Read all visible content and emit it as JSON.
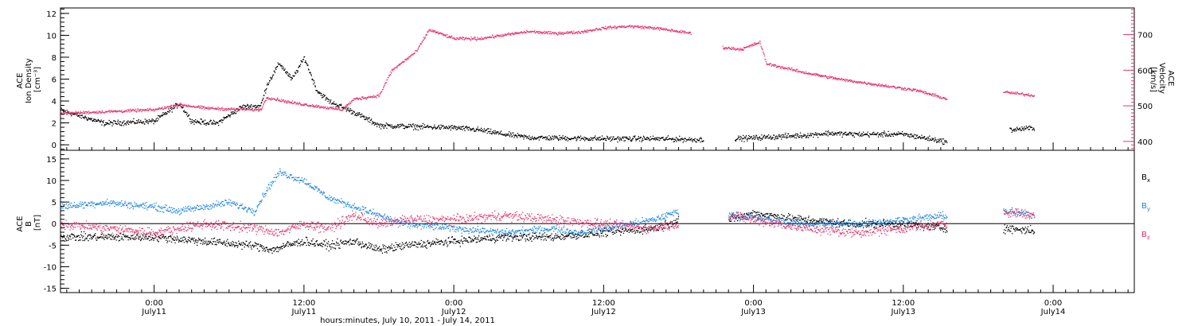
{
  "colors": {
    "black": "#000000",
    "pink": "#e8336b",
    "blue": "#1f87e0"
  },
  "chart_data": [
    {
      "type": "scatter",
      "panel": "top",
      "title": "",
      "x_range": [
        "2011-07-10 16:30",
        "2011-07-14 06:30"
      ],
      "left_axis": {
        "label_lines": [
          "ACE",
          "Ion Density",
          "[cm⁻³]"
        ],
        "ylim": [
          -0.5,
          12.5
        ],
        "ticks": [
          0,
          2,
          4,
          6,
          8,
          10,
          12
        ],
        "tick_labels": [
          "0",
          "2",
          "4",
          "6",
          "8",
          "10",
          "12"
        ]
      },
      "right_axis": {
        "label_lines": [
          "ACE",
          "Velocity",
          "[km/s]"
        ],
        "ylim": [
          375,
          775
        ],
        "ticks": [
          400,
          500,
          600,
          700
        ],
        "tick_labels": [
          "400",
          "500",
          "600",
          "700"
        ],
        "color": "#e8336b"
      },
      "series": [
        {
          "axis": "left",
          "color": "#000000",
          "scatter": 0.35,
          "points": [
            [
              "2011-07-10 16:30",
              3.2
            ],
            [
              "2011-07-10 20:00",
              2.0
            ],
            [
              "2011-07-11 00:00",
              2.2
            ],
            [
              "2011-07-11 02:00",
              3.8
            ],
            [
              "2011-07-11 03:00",
              2.2
            ],
            [
              "2011-07-11 05:00",
              2.0
            ],
            [
              "2011-07-11 07:00",
              3.5
            ],
            [
              "2011-07-11 08:30",
              3.6
            ],
            [
              "2011-07-11 09:00",
              5.5
            ],
            [
              "2011-07-11 10:00",
              7.5
            ],
            [
              "2011-07-11 11:00",
              6.0
            ],
            [
              "2011-07-11 12:00",
              8.0
            ],
            [
              "2011-07-11 13:00",
              5.0
            ],
            [
              "2011-07-11 14:00",
              4.0
            ],
            [
              "2011-07-11 16:00",
              3.0
            ],
            [
              "2011-07-11 18:00",
              1.8
            ],
            [
              "2011-07-12 00:00",
              1.6
            ],
            [
              "2011-07-12 02:00",
              1.4
            ],
            [
              "2011-07-12 04:00",
              1.0
            ],
            [
              "2011-07-12 06:00",
              0.7
            ],
            [
              "2011-07-12 12:00",
              0.6
            ],
            [
              "2011-07-12 16:00",
              0.6
            ],
            [
              "2011-07-12 20:00",
              0.5
            ]
          ]
        },
        {
          "axis": "left",
          "color": "#000000",
          "scatter": 0.35,
          "points": [
            [
              "2011-07-12 22:30",
              0.6
            ],
            [
              "2011-07-13 04:00",
              0.9
            ],
            [
              "2011-07-13 06:00",
              1.1
            ],
            [
              "2011-07-13 08:00",
              1.0
            ],
            [
              "2011-07-13 12:00",
              1.0
            ],
            [
              "2011-07-13 15:30",
              0.3
            ]
          ]
        },
        {
          "axis": "left",
          "color": "#000000",
          "scatter": 0.35,
          "points": [
            [
              "2011-07-13 20:30",
              1.4
            ],
            [
              "2011-07-13 22:30",
              1.6
            ]
          ]
        },
        {
          "axis": "right",
          "color": "#e8336b",
          "scatter": 6,
          "points": [
            [
              "2011-07-10 16:30",
              480
            ],
            [
              "2011-07-11 00:00",
              490
            ],
            [
              "2011-07-11 02:00",
              505
            ],
            [
              "2011-07-11 04:00",
              495
            ],
            [
              "2011-07-11 06:00",
              492
            ],
            [
              "2011-07-11 08:30",
              490
            ],
            [
              "2011-07-11 09:00",
              525
            ],
            [
              "2011-07-11 11:00",
              510
            ],
            [
              "2011-07-11 13:00",
              500
            ],
            [
              "2011-07-11 15:00",
              490
            ],
            [
              "2011-07-11 16:00",
              520
            ],
            [
              "2011-07-11 18:00",
              530
            ],
            [
              "2011-07-11 19:00",
              600
            ],
            [
              "2011-07-11 21:00",
              655
            ],
            [
              "2011-07-11 22:00",
              715
            ],
            [
              "2011-07-12 00:00",
              690
            ],
            [
              "2011-07-12 02:00",
              690
            ],
            [
              "2011-07-12 04:00",
              700
            ],
            [
              "2011-07-12 06:00",
              710
            ],
            [
              "2011-07-12 08:00",
              705
            ],
            [
              "2011-07-12 10:00",
              708
            ],
            [
              "2011-07-12 12:00",
              720
            ],
            [
              "2011-07-12 14:00",
              725
            ],
            [
              "2011-07-12 16:00",
              720
            ],
            [
              "2011-07-12 19:00",
              705
            ]
          ]
        },
        {
          "axis": "right",
          "color": "#e8336b",
          "scatter": 6,
          "points": [
            [
              "2011-07-12 21:30",
              665
            ],
            [
              "2011-07-12 23:00",
              660
            ],
            [
              "2011-07-13 00:30",
              680
            ],
            [
              "2011-07-13 01:00",
              620
            ],
            [
              "2011-07-13 04:00",
              595
            ],
            [
              "2011-07-13 07:00",
              575
            ],
            [
              "2011-07-13 10:00",
              560
            ],
            [
              "2011-07-13 13:00",
              545
            ],
            [
              "2011-07-13 15:30",
              520
            ]
          ]
        },
        {
          "axis": "right",
          "color": "#e8336b",
          "scatter": 6,
          "points": [
            [
              "2011-07-13 20:00",
              540
            ],
            [
              "2011-07-13 22:30",
              530
            ]
          ]
        }
      ]
    },
    {
      "type": "scatter",
      "panel": "bottom",
      "title": "",
      "x_range": [
        "2011-07-10 16:30",
        "2011-07-14 06:30"
      ],
      "left_axis": {
        "label_lines": [
          "ACE",
          "B",
          "[nT]"
        ],
        "ylim": [
          -16,
          17
        ],
        "ticks": [
          -15,
          -10,
          -5,
          0,
          5,
          10,
          15
        ],
        "tick_labels": [
          "-15",
          "-10",
          "-5",
          "0",
          "5",
          "10",
          "15"
        ]
      },
      "zero_line": 0,
      "legend": [
        {
          "label": "B",
          "sub": "x",
          "color": "#000000"
        },
        {
          "label": "B",
          "sub": "y",
          "color": "#1f87e0"
        },
        {
          "label": "B",
          "sub": "z",
          "color": "#e8336b"
        }
      ],
      "series": [
        {
          "name": "Bx",
          "color": "#000000",
          "scatter": 1.4,
          "segments": [
            [
              [
                "2011-07-10 16:30",
                -3
              ],
              [
                "2011-07-11 00:00",
                -3
              ],
              [
                "2011-07-11 04:00",
                -4
              ],
              [
                "2011-07-11 08:00",
                -5
              ],
              [
                "2011-07-11 09:30",
                -6
              ],
              [
                "2011-07-11 10:30",
                -5
              ],
              [
                "2011-07-11 12:00",
                -4
              ],
              [
                "2011-07-11 14:00",
                -5
              ],
              [
                "2011-07-11 16:00",
                -4
              ],
              [
                "2011-07-11 18:00",
                -6
              ],
              [
                "2011-07-11 20:00",
                -5
              ],
              [
                "2011-07-12 00:00",
                -4
              ],
              [
                "2011-07-12 04:00",
                -3
              ],
              [
                "2011-07-12 08:00",
                -3
              ],
              [
                "2011-07-12 12:00",
                -2
              ],
              [
                "2011-07-12 16:00",
                -1
              ],
              [
                "2011-07-12 18:00",
                1
              ]
            ],
            [
              [
                "2011-07-12 22:00",
                1
              ],
              [
                "2011-07-13 00:00",
                2.5
              ],
              [
                "2011-07-13 04:00",
                1
              ],
              [
                "2011-07-13 08:00",
                0
              ],
              [
                "2011-07-13 12:00",
                0
              ],
              [
                "2011-07-13 15:30",
                -1
              ]
            ],
            [
              [
                "2011-07-13 20:00",
                -1
              ],
              [
                "2011-07-13 22:30",
                -1.5
              ]
            ]
          ]
        },
        {
          "name": "By",
          "color": "#1f87e0",
          "scatter": 1.2,
          "segments": [
            [
              [
                "2011-07-10 16:30",
                4
              ],
              [
                "2011-07-10 20:00",
                5
              ],
              [
                "2011-07-11 00:00",
                4
              ],
              [
                "2011-07-11 02:00",
                3
              ],
              [
                "2011-07-11 04:00",
                4
              ],
              [
                "2011-07-11 06:00",
                5
              ],
              [
                "2011-07-11 08:00",
                3
              ],
              [
                "2011-07-11 09:00",
                8
              ],
              [
                "2011-07-11 10:00",
                12
              ],
              [
                "2011-07-11 12:00",
                10
              ],
              [
                "2011-07-11 14:00",
                6
              ],
              [
                "2011-07-11 16:00",
                4
              ],
              [
                "2011-07-11 18:00",
                2
              ],
              [
                "2011-07-11 20:00",
                0
              ],
              [
                "2011-07-12 00:00",
                -1
              ],
              [
                "2011-07-12 04:00",
                -2
              ],
              [
                "2011-07-12 08:00",
                -1
              ],
              [
                "2011-07-12 10:00",
                -2
              ],
              [
                "2011-07-12 12:00",
                -1
              ],
              [
                "2011-07-12 14:00",
                0
              ],
              [
                "2011-07-12 16:00",
                1
              ],
              [
                "2011-07-12 18:00",
                3
              ]
            ],
            [
              [
                "2011-07-12 22:00",
                2
              ],
              [
                "2011-07-13 00:00",
                1.5
              ],
              [
                "2011-07-13 04:00",
                0
              ],
              [
                "2011-07-13 08:00",
                0
              ],
              [
                "2011-07-13 12:00",
                1
              ],
              [
                "2011-07-13 15:30",
                2
              ]
            ],
            [
              [
                "2011-07-13 20:00",
                3
              ],
              [
                "2011-07-13 22:30",
                2
              ]
            ]
          ]
        },
        {
          "name": "Bz",
          "color": "#e8336b",
          "scatter": 1.6,
          "segments": [
            [
              [
                "2011-07-10 16:30",
                0
              ],
              [
                "2011-07-11 00:00",
                -2
              ],
              [
                "2011-07-11 04:00",
                0
              ],
              [
                "2011-07-11 08:00",
                -1
              ],
              [
                "2011-07-11 10:00",
                -2
              ],
              [
                "2011-07-11 12:00",
                0
              ],
              [
                "2011-07-11 14:00",
                -1
              ],
              [
                "2011-07-11 16:00",
                2
              ],
              [
                "2011-07-11 18:00",
                0
              ],
              [
                "2011-07-11 20:00",
                1
              ],
              [
                "2011-07-12 00:00",
                1
              ],
              [
                "2011-07-12 04:00",
                2
              ],
              [
                "2011-07-12 08:00",
                1
              ],
              [
                "2011-07-12 12:00",
                0
              ],
              [
                "2011-07-12 16:00",
                -1
              ],
              [
                "2011-07-12 18:00",
                0
              ]
            ],
            [
              [
                "2011-07-12 22:00",
                2
              ],
              [
                "2011-07-13 00:00",
                1
              ],
              [
                "2011-07-13 04:00",
                -1
              ],
              [
                "2011-07-13 08:00",
                -2
              ],
              [
                "2011-07-13 12:00",
                -1
              ],
              [
                "2011-07-13 15:30",
                0
              ]
            ],
            [
              [
                "2011-07-13 20:00",
                3
              ],
              [
                "2011-07-13 22:30",
                2
              ]
            ]
          ]
        }
      ]
    }
  ],
  "x_axis": {
    "major_ticks": [
      {
        "t": "2011-07-11 00:00",
        "time": "0:00",
        "date": "July11"
      },
      {
        "t": "2011-07-11 12:00",
        "time": "12:00",
        "date": "July11"
      },
      {
        "t": "2011-07-12 00:00",
        "time": "0:00",
        "date": "July12"
      },
      {
        "t": "2011-07-12 12:00",
        "time": "12:00",
        "date": "July12"
      },
      {
        "t": "2011-07-13 00:00",
        "time": "0:00",
        "date": "July13"
      },
      {
        "t": "2011-07-13 12:00",
        "time": "12:00",
        "date": "July13"
      },
      {
        "t": "2011-07-14 00:00",
        "time": "0:00",
        "date": "July14"
      }
    ],
    "label": "hours:minutes, July 10, 2011 - July 14, 2011"
  }
}
